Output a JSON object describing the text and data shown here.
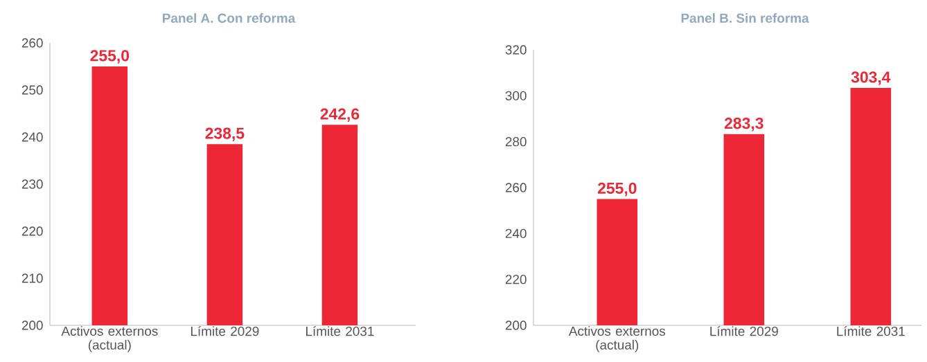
{
  "chart_data": [
    {
      "type": "bar",
      "title": "Panel A. Con reforma",
      "categories": [
        "Activos externos (actual)",
        "Límite 2029",
        "Límite 2031"
      ],
      "values": [
        255.0,
        238.5,
        242.6
      ],
      "color": "#ee2737",
      "value_labels": [
        "255,0",
        "238,5",
        "242,6"
      ],
      "ylim": [
        200,
        260
      ],
      "yticks": [
        200,
        210,
        220,
        230,
        240,
        250,
        260
      ]
    },
    {
      "type": "bar",
      "title": "Panel B. Sin reforma",
      "categories": [
        "Activos externos (actual)",
        "Límite 2029",
        "Límite 2031"
      ],
      "values": [
        255.0,
        283.3,
        303.4
      ],
      "color": "#ee2737",
      "value_labels": [
        "255,0",
        "283,3",
        "303,4"
      ],
      "ylim": [
        200,
        320
      ],
      "yticks": [
        200,
        220,
        240,
        260,
        280,
        300,
        320
      ]
    }
  ]
}
